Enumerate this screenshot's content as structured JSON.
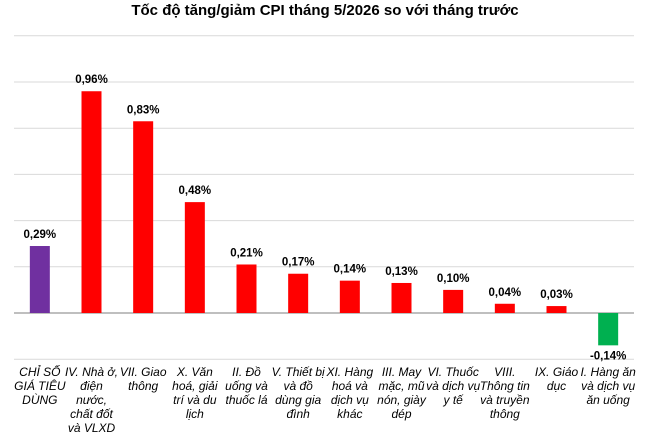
{
  "chart_data": {
    "type": "bar",
    "title": "Tốc độ tăng/giảm CPI tháng 5/2026 so với tháng trước",
    "xlabel": "",
    "ylabel": "",
    "ylim": [
      -0.4,
      1.2
    ],
    "grid": true,
    "legend": "none",
    "categories": [
      "CHỈ SỐ GIÁ TIÊU DÙNG",
      "IV. Nhà ở, điện nước, chất đốt và VLXD",
      "VII. Giao thông",
      "X. Văn hoá, giải trí và du lịch",
      "II. Đồ uống và thuốc lá",
      "V. Thiết bị và đồ dùng gia đình",
      "XI. Hàng hoá và dịch vụ khác",
      "III. May mặc, mũ nón, giày dép",
      "VI. Thuốc và dịch vụ y tế",
      "VIII. Thông tin và truyền thông",
      "IX. Giáo dục",
      "I. Hàng ăn và dịch vụ ăn uống"
    ],
    "values": [
      0.29,
      0.96,
      0.83,
      0.48,
      0.21,
      0.17,
      0.14,
      0.13,
      0.1,
      0.04,
      0.03,
      -0.14
    ],
    "data_labels": [
      "0,29%",
      "0,96%",
      "0,83%",
      "0,48%",
      "0,21%",
      "0,17%",
      "0,14%",
      "0,13%",
      "0,10%",
      "0,04%",
      "0,03%",
      "-0,14%"
    ],
    "colors": [
      "#7030a0",
      "#ff0000",
      "#ff0000",
      "#ff0000",
      "#ff0000",
      "#ff0000",
      "#ff0000",
      "#ff0000",
      "#ff0000",
      "#ff0000",
      "#ff0000",
      "#00b050"
    ],
    "gridline_color": "#d9d9d9",
    "axis_color": "#7f7f7f"
  }
}
